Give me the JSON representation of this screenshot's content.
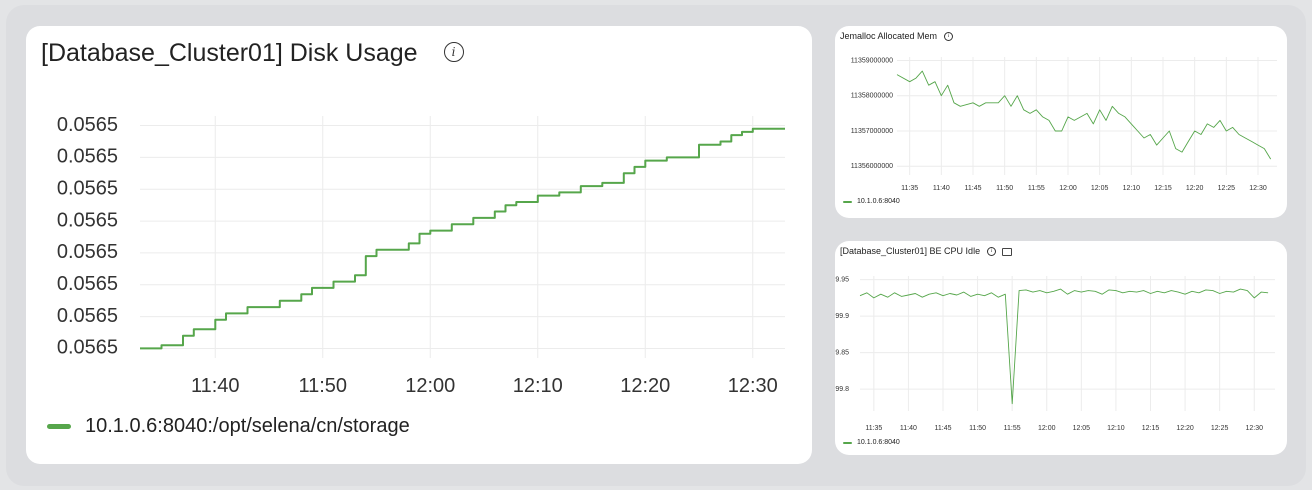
{
  "panels": {
    "disk": {
      "title": "[Database_Cluster01] Disk Usage",
      "legend": "10.1.0.6:8040:/opt/selena/cn/storage"
    },
    "jemalloc": {
      "title": "Jemalloc Allocated Mem",
      "legend": "10.1.0.6:8040"
    },
    "cpu": {
      "title": "[Database_Cluster01] BE CPU Idle",
      "legend": "10.1.0.6:8040"
    }
  },
  "series_color": "#56a64b",
  "chart_data": [
    {
      "id": "disk",
      "type": "line",
      "title": "[Database_Cluster01] Disk Usage",
      "series": [
        {
          "name": "10.1.0.6:8040:/opt/selena/cn/storage",
          "color": "#56a64b"
        }
      ],
      "x": [
        "11:33",
        "11:35",
        "11:37",
        "11:38",
        "11:40",
        "11:41",
        "11:43",
        "11:46",
        "11:48",
        "11:49",
        "11:51",
        "11:53",
        "11:54",
        "11:55",
        "11:58",
        "11:59",
        "12:00",
        "12:02",
        "12:03",
        "12:04",
        "12:06",
        "12:07",
        "12:08",
        "12:10",
        "12:12",
        "12:14",
        "12:16",
        "12:18",
        "12:19",
        "12:20",
        "12:22",
        "12:25",
        "12:27",
        "12:28",
        "12:29",
        "12:30",
        "12:32"
      ],
      "values": [
        0.05647,
        0.05648,
        0.05651,
        0.05653,
        0.05656,
        0.05658,
        0.0566,
        0.05662,
        0.05664,
        0.05666,
        0.05668,
        0.0567,
        0.05676,
        0.05678,
        0.0568,
        0.05683,
        0.05684,
        0.05686,
        0.05686,
        0.05688,
        0.0569,
        0.05692,
        0.05693,
        0.05695,
        0.05696,
        0.05698,
        0.05699,
        0.05702,
        0.05704,
        0.05706,
        0.05707,
        0.05711,
        0.05712,
        0.05714,
        0.05715,
        0.05716,
        0.05716
      ],
      "ytick_labels": [
        "0.0565",
        "0.0565",
        "0.0565",
        "0.0565",
        "0.0565",
        "0.0565",
        "0.0565",
        "0.0565"
      ],
      "ytick_values": [
        0.05717,
        0.05707,
        0.05697,
        0.05687,
        0.05677,
        0.05667,
        0.05657,
        0.05647
      ],
      "xtick_labels": [
        "11:40",
        "11:50",
        "12:00",
        "12:10",
        "12:20",
        "12:30"
      ],
      "xtick_values": [
        "11:40",
        "11:50",
        "12:00",
        "12:10",
        "12:20",
        "12:30"
      ],
      "xlim": [
        "11:33",
        "12:33"
      ],
      "ylim": [
        0.05644,
        0.0572
      ],
      "grid": true,
      "legend": "bottom-left"
    },
    {
      "id": "jemalloc",
      "type": "line",
      "title": "Jemalloc Allocated Mem",
      "series": [
        {
          "name": "10.1.0.6:8040",
          "color": "#56a64b"
        }
      ],
      "x": [
        "11:33",
        "11:35",
        "11:36",
        "11:37",
        "11:38",
        "11:39",
        "11:40",
        "11:41",
        "11:42",
        "11:43",
        "11:45",
        "11:46",
        "11:47",
        "11:49",
        "11:50",
        "11:51",
        "11:52",
        "11:53",
        "11:54",
        "11:55",
        "11:56",
        "11:57",
        "11:58",
        "11:59",
        "12:00",
        "12:01",
        "12:02",
        "12:03",
        "12:04",
        "12:05",
        "12:06",
        "12:07",
        "12:08",
        "12:09",
        "12:10",
        "12:11",
        "12:12",
        "12:13",
        "12:14",
        "12:15",
        "12:16",
        "12:17",
        "12:18",
        "12:19",
        "12:20",
        "12:21",
        "12:22",
        "12:23",
        "12:24",
        "12:25",
        "12:26",
        "12:27",
        "12:28",
        "12:29",
        "12:30",
        "12:31",
        "12:32"
      ],
      "values": [
        11358600000,
        11358400000,
        11358500000,
        11358700000,
        11358300000,
        11358400000,
        11358000000,
        11358300000,
        11357800000,
        11357700000,
        11357800000,
        11357700000,
        11357800000,
        11357800000,
        11358000000,
        11357700000,
        11358000000,
        11357600000,
        11357500000,
        11357600000,
        11357400000,
        11357300000,
        11357000000,
        11357000000,
        11357400000,
        11357300000,
        11357400000,
        11357500000,
        11357200000,
        11357600000,
        11357300000,
        11357700000,
        11357500000,
        11357400000,
        11357200000,
        11357000000,
        11356800000,
        11356900000,
        11356600000,
        11356800000,
        11357000000,
        11356500000,
        11356400000,
        11356700000,
        11357000000,
        11356900000,
        11357200000,
        11357100000,
        11357300000,
        11357000000,
        11357100000,
        11356900000,
        11356800000,
        11356700000,
        11356600000,
        11356500000,
        11356200000
      ],
      "ytick_labels": [
        "11359000000",
        "11358000000",
        "11357000000",
        "11356000000"
      ],
      "ytick_values": [
        11359000000,
        11358000000,
        11357000000,
        11356000000
      ],
      "xtick_labels": [
        "11:35",
        "11:40",
        "11:45",
        "11:50",
        "11:55",
        "12:00",
        "12:05",
        "12:10",
        "12:15",
        "12:20",
        "12:25",
        "12:30"
      ],
      "xtick_values": [
        "11:35",
        "11:40",
        "11:45",
        "11:50",
        "11:55",
        "12:00",
        "12:05",
        "12:10",
        "12:15",
        "12:20",
        "12:25",
        "12:30"
      ],
      "xlim": [
        "11:33",
        "12:33"
      ],
      "ylim": [
        11355750000,
        11359100000
      ],
      "grid": true,
      "legend": "bottom-left"
    },
    {
      "id": "cpu",
      "type": "line",
      "title": "[Database_Cluster01] BE CPU Idle",
      "series": [
        {
          "name": "10.1.0.6:8040",
          "color": "#56a64b"
        }
      ],
      "x": [
        "11:33",
        "11:34",
        "11:35",
        "11:36",
        "11:37",
        "11:38",
        "11:39",
        "11:40",
        "11:41",
        "11:42",
        "11:43",
        "11:44",
        "11:45",
        "11:46",
        "11:47",
        "11:48",
        "11:49",
        "11:50",
        "11:51",
        "11:52",
        "11:53",
        "11:54",
        "11:55",
        "11:56",
        "11:57",
        "11:58",
        "11:59",
        "12:00",
        "12:01",
        "12:02",
        "12:03",
        "12:04",
        "12:05",
        "12:06",
        "12:07",
        "12:08",
        "12:09",
        "12:10",
        "12:11",
        "12:12",
        "12:13",
        "12:14",
        "12:15",
        "12:16",
        "12:17",
        "12:18",
        "12:19",
        "12:20",
        "12:21",
        "12:22",
        "12:23",
        "12:24",
        "12:25",
        "12:26",
        "12:27",
        "12:28",
        "12:29",
        "12:30",
        "12:31",
        "12:32"
      ],
      "values": [
        99.928,
        99.932,
        99.925,
        99.93,
        99.926,
        99.932,
        99.927,
        99.929,
        99.931,
        99.926,
        99.93,
        99.932,
        99.928,
        99.931,
        99.929,
        99.933,
        99.927,
        99.93,
        99.928,
        99.932,
        99.926,
        99.93,
        99.78,
        99.935,
        99.936,
        99.933,
        99.935,
        99.932,
        99.934,
        99.937,
        99.93,
        99.935,
        99.933,
        99.935,
        99.934,
        99.93,
        99.936,
        99.935,
        99.932,
        99.934,
        99.933,
        99.935,
        99.931,
        99.934,
        99.932,
        99.935,
        99.933,
        99.93,
        99.934,
        99.932,
        99.936,
        99.935,
        99.931,
        99.934,
        99.933,
        99.937,
        99.935,
        99.925,
        99.933,
        99.932
      ],
      "ytick_labels": [
        "99.95",
        "99.9",
        "99.85",
        "99.8"
      ],
      "ytick_values": [
        99.95,
        99.9,
        99.85,
        99.8
      ],
      "xtick_labels": [
        "11:35",
        "11:40",
        "11:45",
        "11:50",
        "11:55",
        "12:00",
        "12:05",
        "12:10",
        "12:15",
        "12:20",
        "12:25",
        "12:30"
      ],
      "xtick_values": [
        "11:35",
        "11:40",
        "11:45",
        "11:50",
        "11:55",
        "12:00",
        "12:05",
        "12:10",
        "12:15",
        "12:20",
        "12:25",
        "12:30"
      ],
      "xlim": [
        "11:33",
        "12:33"
      ],
      "ylim": [
        99.77,
        99.955
      ],
      "grid": true,
      "legend": "bottom-left"
    }
  ]
}
